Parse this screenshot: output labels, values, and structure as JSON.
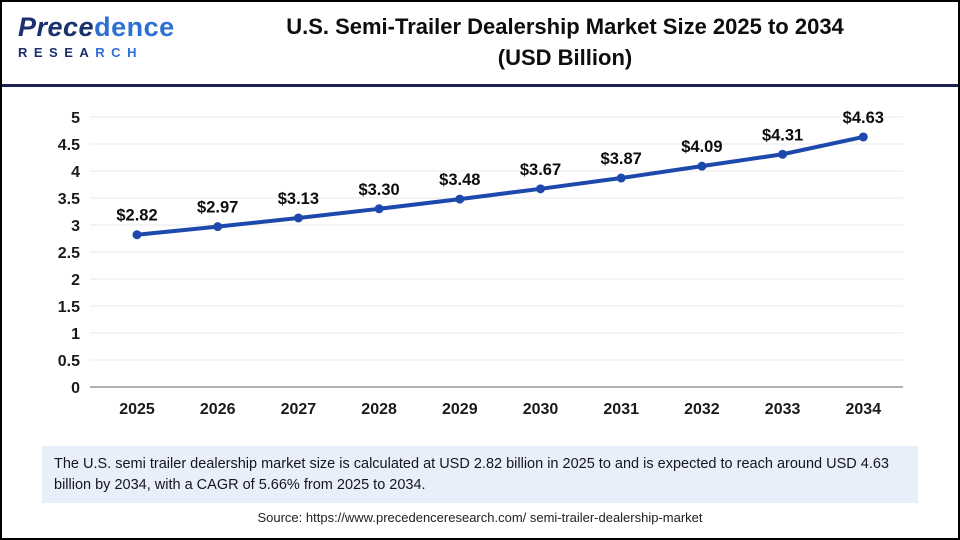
{
  "header": {
    "logo": {
      "brand_part1": "Prece",
      "brand_part2": "dence",
      "sub_part1": "RESEA",
      "sub_part2": "RCH"
    },
    "title_line1": "U.S. Semi-Trailer Dealership Market Size 2025 to 2034",
    "title_line2": "(USD Billion)"
  },
  "chart_data": {
    "type": "line",
    "title": "U.S. Semi-Trailer Dealership Market Size 2025 to 2034 (USD Billion)",
    "categories": [
      "2025",
      "2026",
      "2027",
      "2028",
      "2029",
      "2030",
      "2031",
      "2032",
      "2033",
      "2034"
    ],
    "values": [
      2.82,
      2.97,
      3.13,
      3.3,
      3.48,
      3.67,
      3.87,
      4.09,
      4.31,
      4.63
    ],
    "labels": [
      "$2.82",
      "$2.97",
      "$3.13",
      "$3.30",
      "$3.48",
      "$3.67",
      "$3.87",
      "$4.09",
      "$4.31",
      "$4.63"
    ],
    "xlabel": "",
    "ylabel": "",
    "ylim": [
      0,
      5
    ],
    "ytick_step": 0.5,
    "grid": true,
    "legend": "none",
    "line_color": "#1e49ac",
    "grid_color": "#e9e9e9",
    "axis_color": "#b0b0b0"
  },
  "note": {
    "text": "The U.S. semi trailer dealership market  size is calculated at USD 2.82 billion in 2025 to and is expected to reach around USD 4.63 billion by 2034, with a CAGR of 5.66% from 2025 to 2034."
  },
  "source": {
    "text": "Source: https://www.precedenceresearch.com/ semi-trailer-dealership-market"
  }
}
